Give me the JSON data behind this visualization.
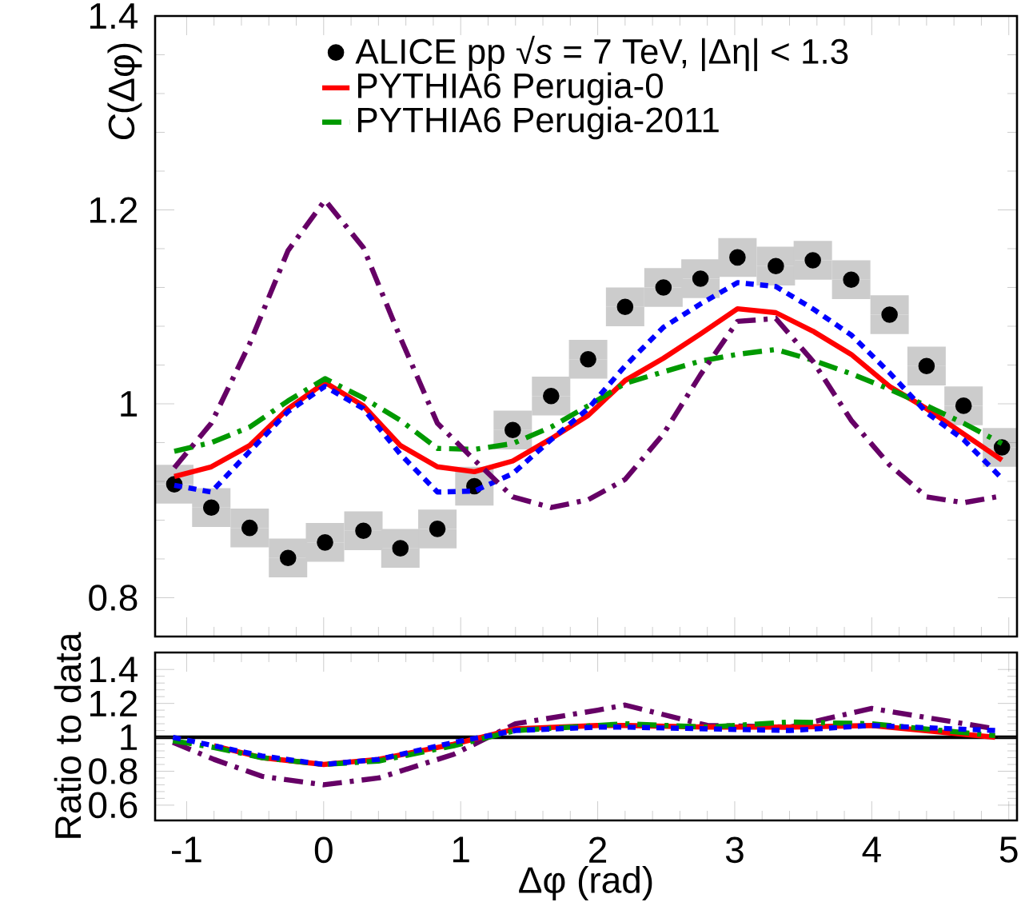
{
  "chart_data": [
    {
      "type": "line",
      "ylabel": "*C*(Δφ)",
      "legend": "top",
      "tick_labels": "y",
      "xlim": [
        -1.23,
        5.06
      ],
      "ylim": [
        0.76,
        1.4
      ],
      "xticks": [
        -1,
        0,
        1,
        2,
        3,
        4,
        5
      ],
      "yticks": [
        0.8,
        1,
        1.2,
        1.4
      ],
      "x": [
        -1.09,
        -0.82,
        -0.54,
        -0.26,
        0.01,
        0.29,
        0.56,
        0.83,
        1.1,
        1.38,
        1.66,
        1.93,
        2.2,
        2.48,
        2.75,
        3.02,
        3.3,
        3.57,
        3.85,
        4.13,
        4.4,
        4.67,
        4.95
      ],
      "series": [
        {
          "name": "ALICE pp √*s* = 7 TeV, |Δη| < 1.3",
          "type": "scatter",
          "marker": "circle",
          "color": "#000000",
          "values": [
            0.917,
            0.893,
            0.872,
            0.841,
            0.857,
            0.869,
            0.851,
            0.871,
            0.915,
            0.973,
            1.008,
            1.046,
            1.1,
            1.12,
            1.129,
            1.151,
            1.142,
            1.148,
            1.128,
            1.092,
            1.039,
            0.998,
            0.955
          ],
          "errors": [
            0.02,
            0.02,
            0.02,
            0.02,
            0.02,
            0.02,
            0.02,
            0.02,
            0.02,
            0.02,
            0.02,
            0.02,
            0.02,
            0.02,
            0.02,
            0.02,
            0.02,
            0.02,
            0.02,
            0.02,
            0.02,
            0.02,
            0.02
          ]
        },
        {
          "name": "PYTHIA6 Perugia-0",
          "line_style": "solid",
          "color": "#ff0000",
          "values": [
            0.925,
            0.935,
            0.957,
            0.995,
            1.022,
            0.998,
            0.957,
            0.935,
            0.93,
            0.941,
            0.964,
            0.988,
            1.024,
            1.047,
            1.072,
            1.098,
            1.094,
            1.075,
            1.051,
            1.018,
            0.995,
            0.969,
            0.942
          ]
        },
        {
          "name": "PYTHIA6 Perugia-2011",
          "line_style": "dashed",
          "color": "#009900",
          "values": [
            0.951,
            0.96,
            0.976,
            1.003,
            1.026,
            1.006,
            0.983,
            0.954,
            0.953,
            0.959,
            0.976,
            0.998,
            1.021,
            1.033,
            1.044,
            1.051,
            1.056,
            1.045,
            1.031,
            1.015,
            0.998,
            0.98,
            0.959
          ]
        },
        {
          "line_style": "dotted",
          "color": "#0000ff",
          "values": [
            0.916,
            0.909,
            0.951,
            0.992,
            1.018,
            0.995,
            0.948,
            0.909,
            0.91,
            0.928,
            0.963,
            0.995,
            1.039,
            1.079,
            1.103,
            1.125,
            1.121,
            1.098,
            1.071,
            1.032,
            0.991,
            0.963,
            0.923
          ]
        },
        {
          "line_style": "dashed",
          "color": "#660066",
          "values": [
            0.934,
            0.98,
            1.062,
            1.158,
            1.21,
            1.161,
            1.068,
            0.98,
            0.942,
            0.904,
            0.893,
            0.901,
            0.922,
            0.969,
            1.03,
            1.085,
            1.088,
            1.044,
            0.983,
            0.937,
            0.904,
            0.898,
            0.905
          ]
        }
      ]
    },
    {
      "type": "line",
      "xlabel": "Δφ (rad)",
      "ylabel": "Ratio to data",
      "xlim": [
        -1.23,
        5.06
      ],
      "ylim": [
        0.51,
        1.5
      ],
      "xticks": [
        -1,
        0,
        1,
        2,
        3,
        4,
        5
      ],
      "yticks": [
        0.6,
        0.8,
        1,
        1.2,
        1.4
      ],
      "ref_lines": [
        {
          "axis": "y",
          "value": 1,
          "color": "#000000"
        }
      ],
      "x": [
        -1.1,
        -0.8,
        -0.45,
        0,
        0.4,
        0.95,
        1.4,
        2.0,
        2.2,
        2.8,
        3.4,
        4.0,
        4.9
      ],
      "series": [
        {
          "line_style": "dashed",
          "color": "#660066",
          "values": [
            0.97,
            0.87,
            0.77,
            0.72,
            0.76,
            0.9,
            1.08,
            1.16,
            1.19,
            1.07,
            1.06,
            1.17,
            1.05
          ]
        },
        {
          "line_style": "solid",
          "color": "#ff0000",
          "values": [
            null,
            0.95,
            0.88,
            0.84,
            0.87,
            0.96,
            1.05,
            1.07,
            1.07,
            1.06,
            1.06,
            1.07,
            1.0
          ]
        },
        {
          "line_style": "dashed",
          "color": "#009900",
          "values": [
            0.98,
            0.94,
            0.88,
            0.84,
            0.86,
            0.95,
            1.04,
            1.07,
            1.08,
            1.06,
            1.09,
            1.08,
            1.01
          ]
        },
        {
          "line_style": "dotted",
          "color": "#0000ff",
          "values": [
            1.0,
            0.95,
            0.89,
            0.84,
            0.87,
            0.97,
            1.04,
            1.06,
            1.06,
            1.05,
            1.04,
            1.07,
            1.04
          ]
        }
      ]
    }
  ]
}
